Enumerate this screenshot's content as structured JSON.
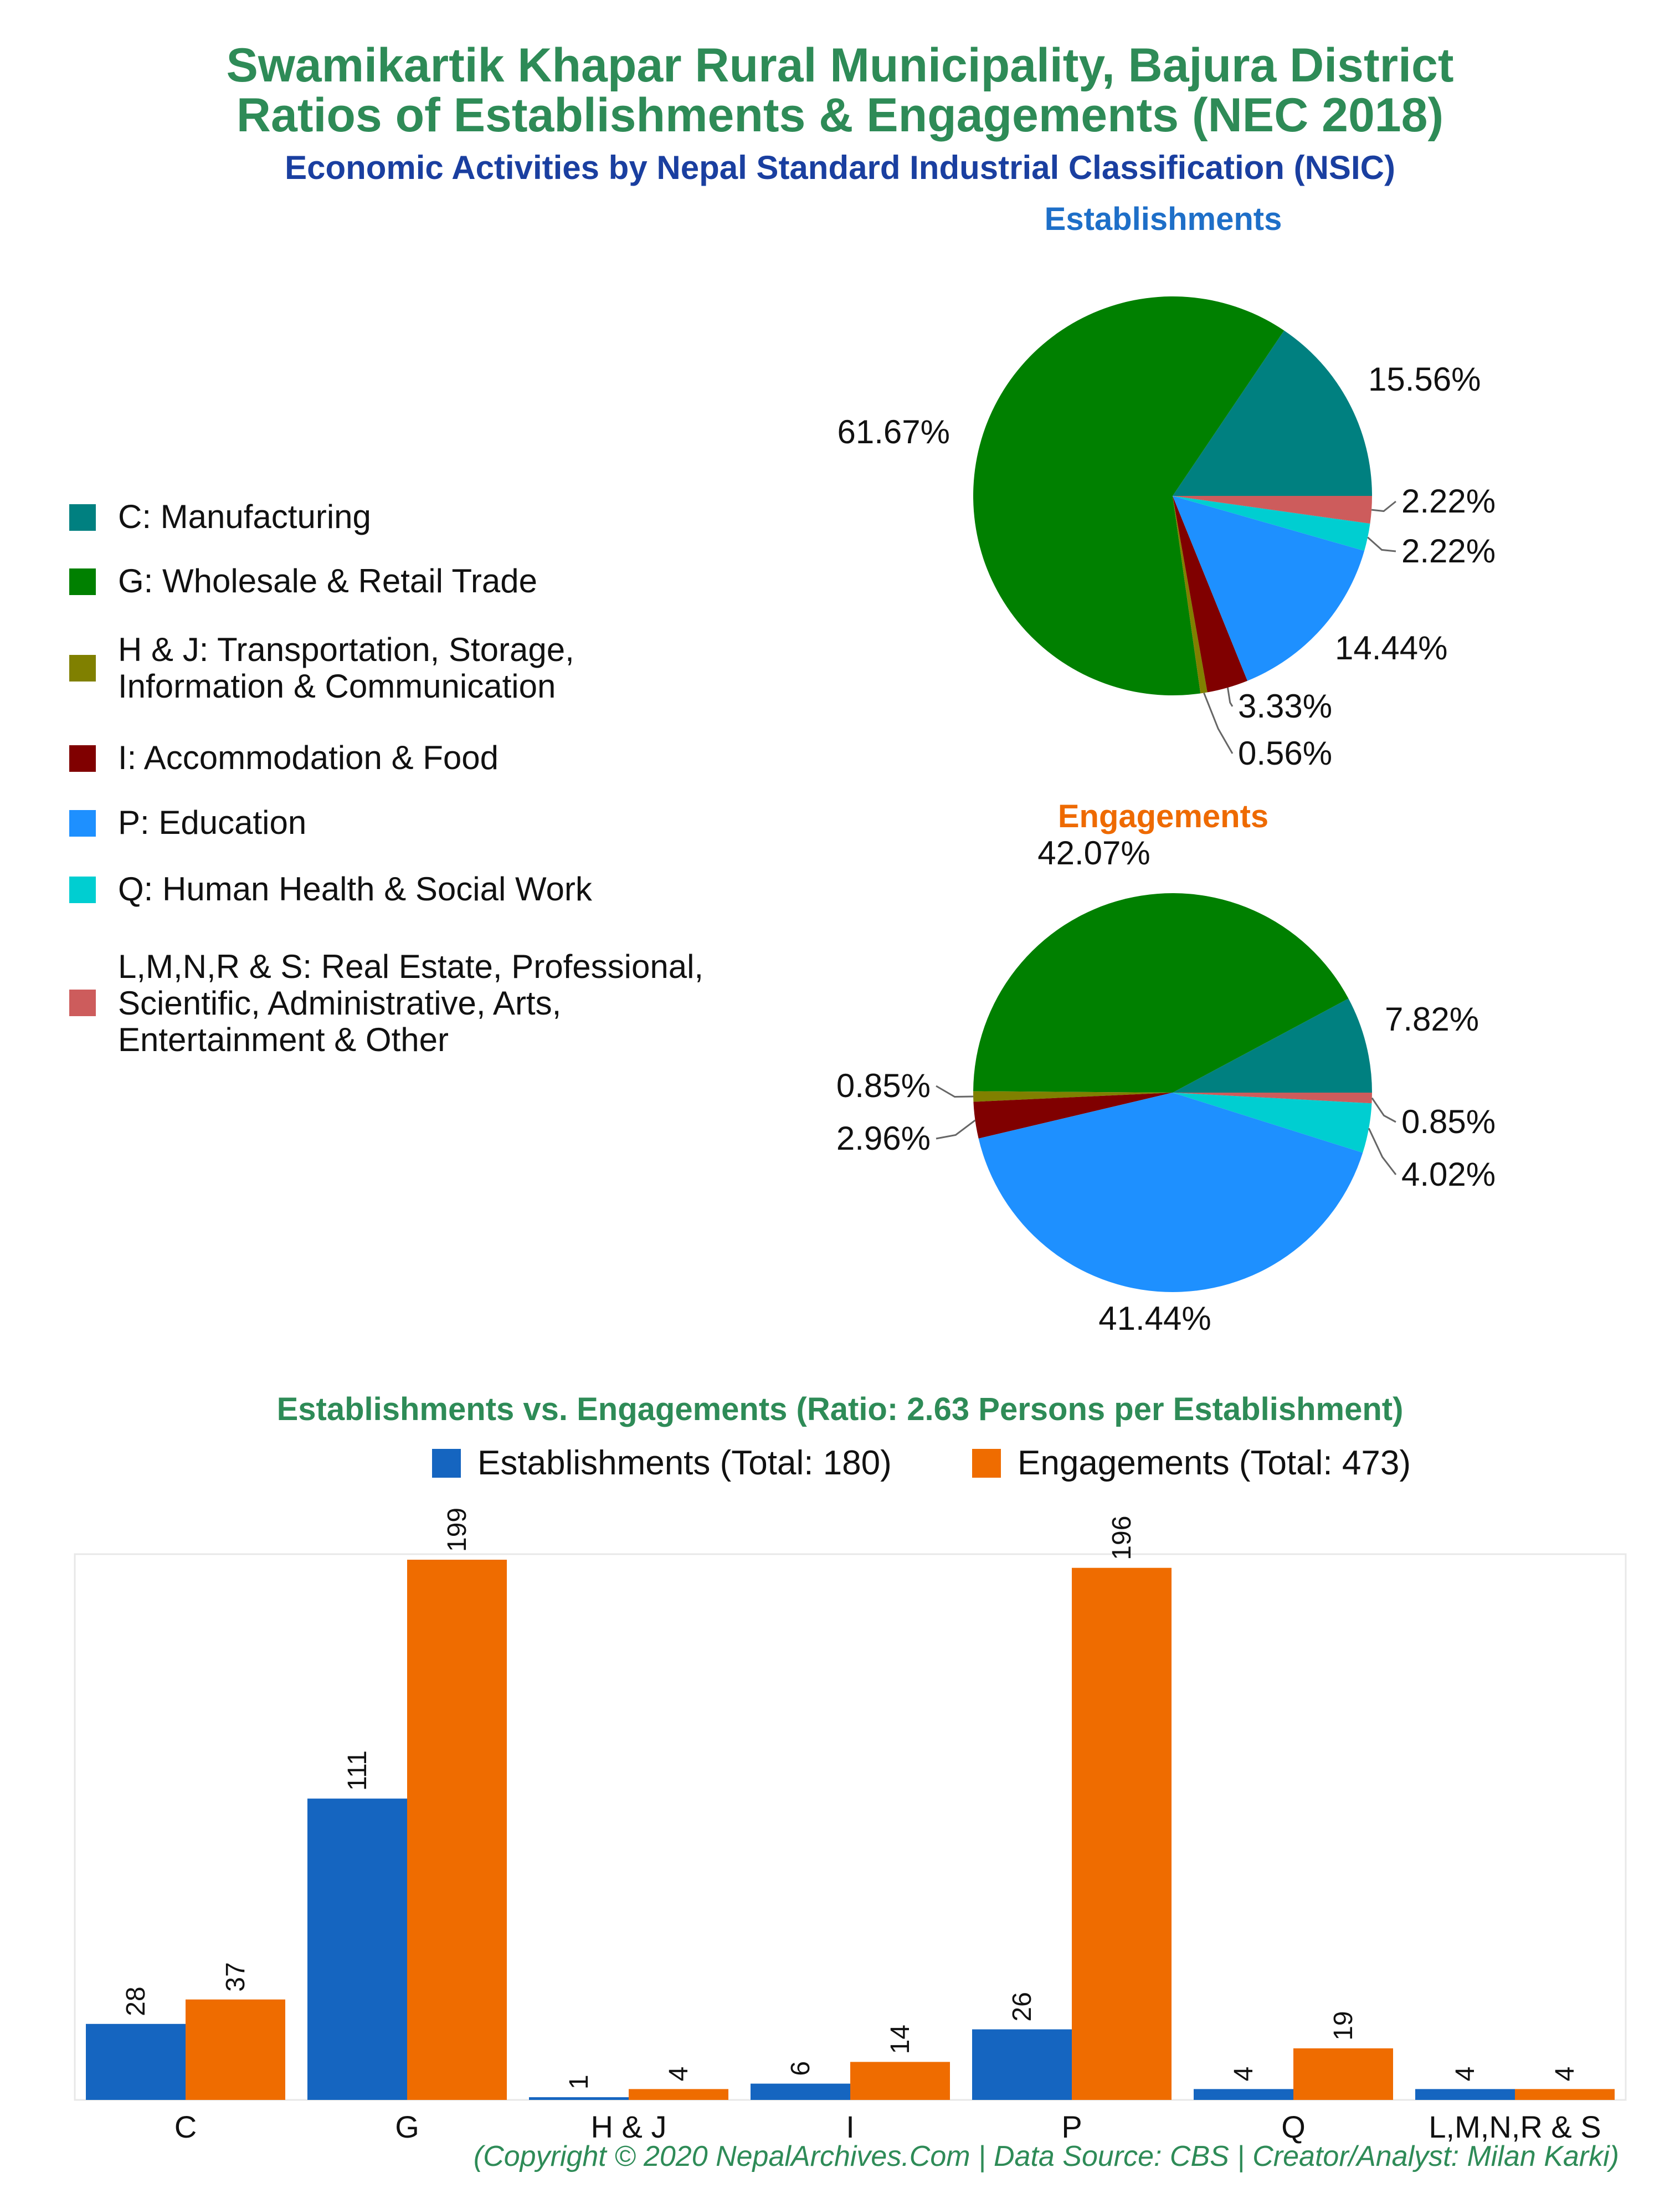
{
  "header": {
    "title_line1": "Swamikartik Khapar Rural Municipality, Bajura District",
    "title_line2": "Ratios of Establishments & Engagements (NEC 2018)",
    "subtitle": "Economic Activities by Nepal Standard Industrial Classification (NSIC)"
  },
  "legend": {
    "items": [
      {
        "code": "C",
        "label": "C: Manufacturing",
        "color": "#008080"
      },
      {
        "code": "G",
        "label": "G: Wholesale & Retail Trade",
        "color": "#008000"
      },
      {
        "code": "H & J",
        "label": "H & J: Transportation, Storage,\nInformation & Communication",
        "color": "#808000"
      },
      {
        "code": "I",
        "label": "I: Accommodation & Food",
        "color": "#800000"
      },
      {
        "code": "P",
        "label": "P: Education",
        "color": "#1e90ff"
      },
      {
        "code": "Q",
        "label": "Q: Human Health & Social Work",
        "color": "#00ced1"
      },
      {
        "code": "L,M,N,R & S",
        "label": "L,M,N,R & S: Real Estate, Professional,\nScientific, Administrative, Arts,\nEntertainment & Other",
        "color": "#cd5c5c"
      }
    ]
  },
  "chart_data": [
    {
      "type": "pie",
      "title": "Establishments",
      "categories": [
        "C",
        "G",
        "H & J",
        "I",
        "P",
        "Q",
        "L,M,N,R & S"
      ],
      "values": [
        15.56,
        61.67,
        0.56,
        3.33,
        14.44,
        2.22,
        2.22
      ],
      "labels": [
        "15.56%",
        "61.67%",
        "0.56%",
        "3.33%",
        "14.44%",
        "2.22%",
        "2.22%"
      ]
    },
    {
      "type": "pie",
      "title": "Engagements",
      "categories": [
        "C",
        "G",
        "H & J",
        "I",
        "P",
        "Q",
        "L,M,N,R & S"
      ],
      "values": [
        7.82,
        42.07,
        0.85,
        2.96,
        41.44,
        4.02,
        0.85
      ],
      "labels": [
        "7.82%",
        "42.07%",
        "0.85%",
        "2.96%",
        "41.44%",
        "4.02%",
        "0.85%"
      ]
    },
    {
      "type": "bar",
      "title": "Establishments vs. Engagements (Ratio: 2.63 Persons per Establishment)",
      "categories": [
        "C",
        "G",
        "H & J",
        "I",
        "P",
        "Q",
        "L,M,N,R & S"
      ],
      "series": [
        {
          "name": "Establishments (Total: 180)",
          "values": [
            28,
            111,
            1,
            6,
            26,
            4,
            4
          ],
          "color": "#1565c0"
        },
        {
          "name": "Engagements (Total: 473)",
          "values": [
            37,
            199,
            4,
            14,
            196,
            19,
            4
          ],
          "color": "#ef6c00"
        }
      ],
      "ylim": [
        0,
        199
      ]
    }
  ],
  "footer": {
    "credit": "(Copyright © 2020 NepalArchives.Com | Data Source: CBS | Creator/Analyst: Milan Karki)"
  }
}
